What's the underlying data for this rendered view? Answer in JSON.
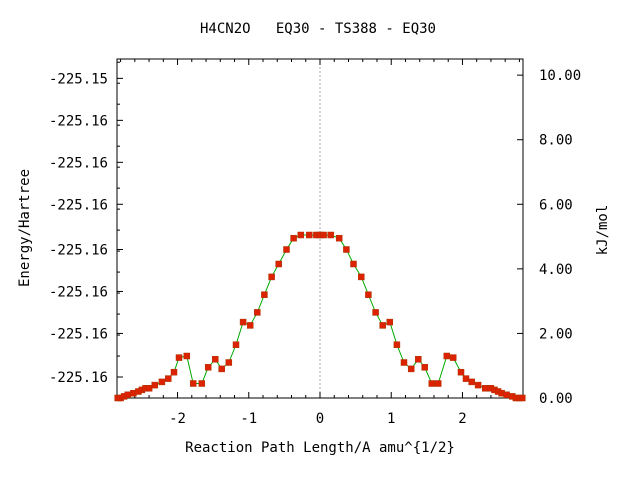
{
  "chart_data": {
    "type": "line",
    "title": "H4CN2O   EQ30 - TS388 - EQ30",
    "xlabel": "Reaction Path Length/A amu^{1/2}",
    "ylabel": "Energy/Hartree",
    "y2label": "kJ/mol",
    "xlim": [
      -2.85,
      2.85
    ],
    "y2lim": [
      0,
      10.5
    ],
    "x_ticks": [
      -2,
      -1,
      0,
      1,
      2
    ],
    "x_tick_labels": [
      "-2",
      "-1",
      "0",
      "1",
      "2"
    ],
    "y_tick_labels": [
      "-225.15",
      "-225.16",
      "-225.16",
      "-225.16",
      "-225.16",
      "-225.16",
      "-225.16",
      "-225.16"
    ],
    "y_tick_values_kjmol": [
      9.9,
      8.6,
      7.3,
      6.0,
      4.6,
      3.3,
      2.0,
      0.65
    ],
    "y2_ticks": [
      0,
      2,
      4,
      6,
      8,
      10
    ],
    "y2_tick_labels": [
      "0.00",
      "2.00",
      "4.00",
      "6.00",
      "8.00",
      "10.00"
    ],
    "grid": false,
    "vline_x": 0,
    "colors": {
      "line": "#00aa00",
      "marker": "#dd2200",
      "vline": "#aaaaaa",
      "axis": "#000000"
    },
    "series": [
      {
        "unit": "kJ/mol",
        "x": [
          -2.84,
          -2.8,
          -2.75,
          -2.7,
          -2.62,
          -2.55,
          -2.5,
          -2.45,
          -2.4,
          -2.32,
          -2.22,
          -2.13,
          -2.05,
          -1.98,
          -1.87,
          -1.78,
          -1.66,
          -1.57,
          -1.47,
          -1.38,
          -1.28,
          -1.18,
          -1.08,
          -0.98,
          -0.88,
          -0.78,
          -0.68,
          -0.58,
          -0.47,
          -0.37,
          -0.27,
          -0.15,
          -0.05,
          0.0,
          0.05,
          0.15,
          0.27,
          0.37,
          0.47,
          0.58,
          0.68,
          0.78,
          0.88,
          0.98,
          1.08,
          1.18,
          1.28,
          1.38,
          1.47,
          1.57,
          1.66,
          1.78,
          1.87,
          1.98,
          2.05,
          2.13,
          2.22,
          2.32,
          2.4,
          2.45,
          2.5,
          2.55,
          2.62,
          2.7,
          2.75,
          2.8,
          2.84
        ],
        "y": [
          0.0,
          0.0,
          0.05,
          0.1,
          0.15,
          0.2,
          0.25,
          0.3,
          0.3,
          0.4,
          0.5,
          0.6,
          0.8,
          1.25,
          1.3,
          0.45,
          0.45,
          0.95,
          1.2,
          0.9,
          1.1,
          1.65,
          2.35,
          2.25,
          2.65,
          3.2,
          3.75,
          4.15,
          4.6,
          4.95,
          5.05,
          5.05,
          5.05,
          5.05,
          5.05,
          5.05,
          4.95,
          4.6,
          4.15,
          3.75,
          3.2,
          2.65,
          2.25,
          2.35,
          1.65,
          1.1,
          0.9,
          1.2,
          0.95,
          0.45,
          0.45,
          1.3,
          1.25,
          0.8,
          0.6,
          0.5,
          0.4,
          0.3,
          0.3,
          0.25,
          0.2,
          0.15,
          0.1,
          0.05,
          0.0,
          0.0,
          0.0
        ]
      }
    ]
  }
}
